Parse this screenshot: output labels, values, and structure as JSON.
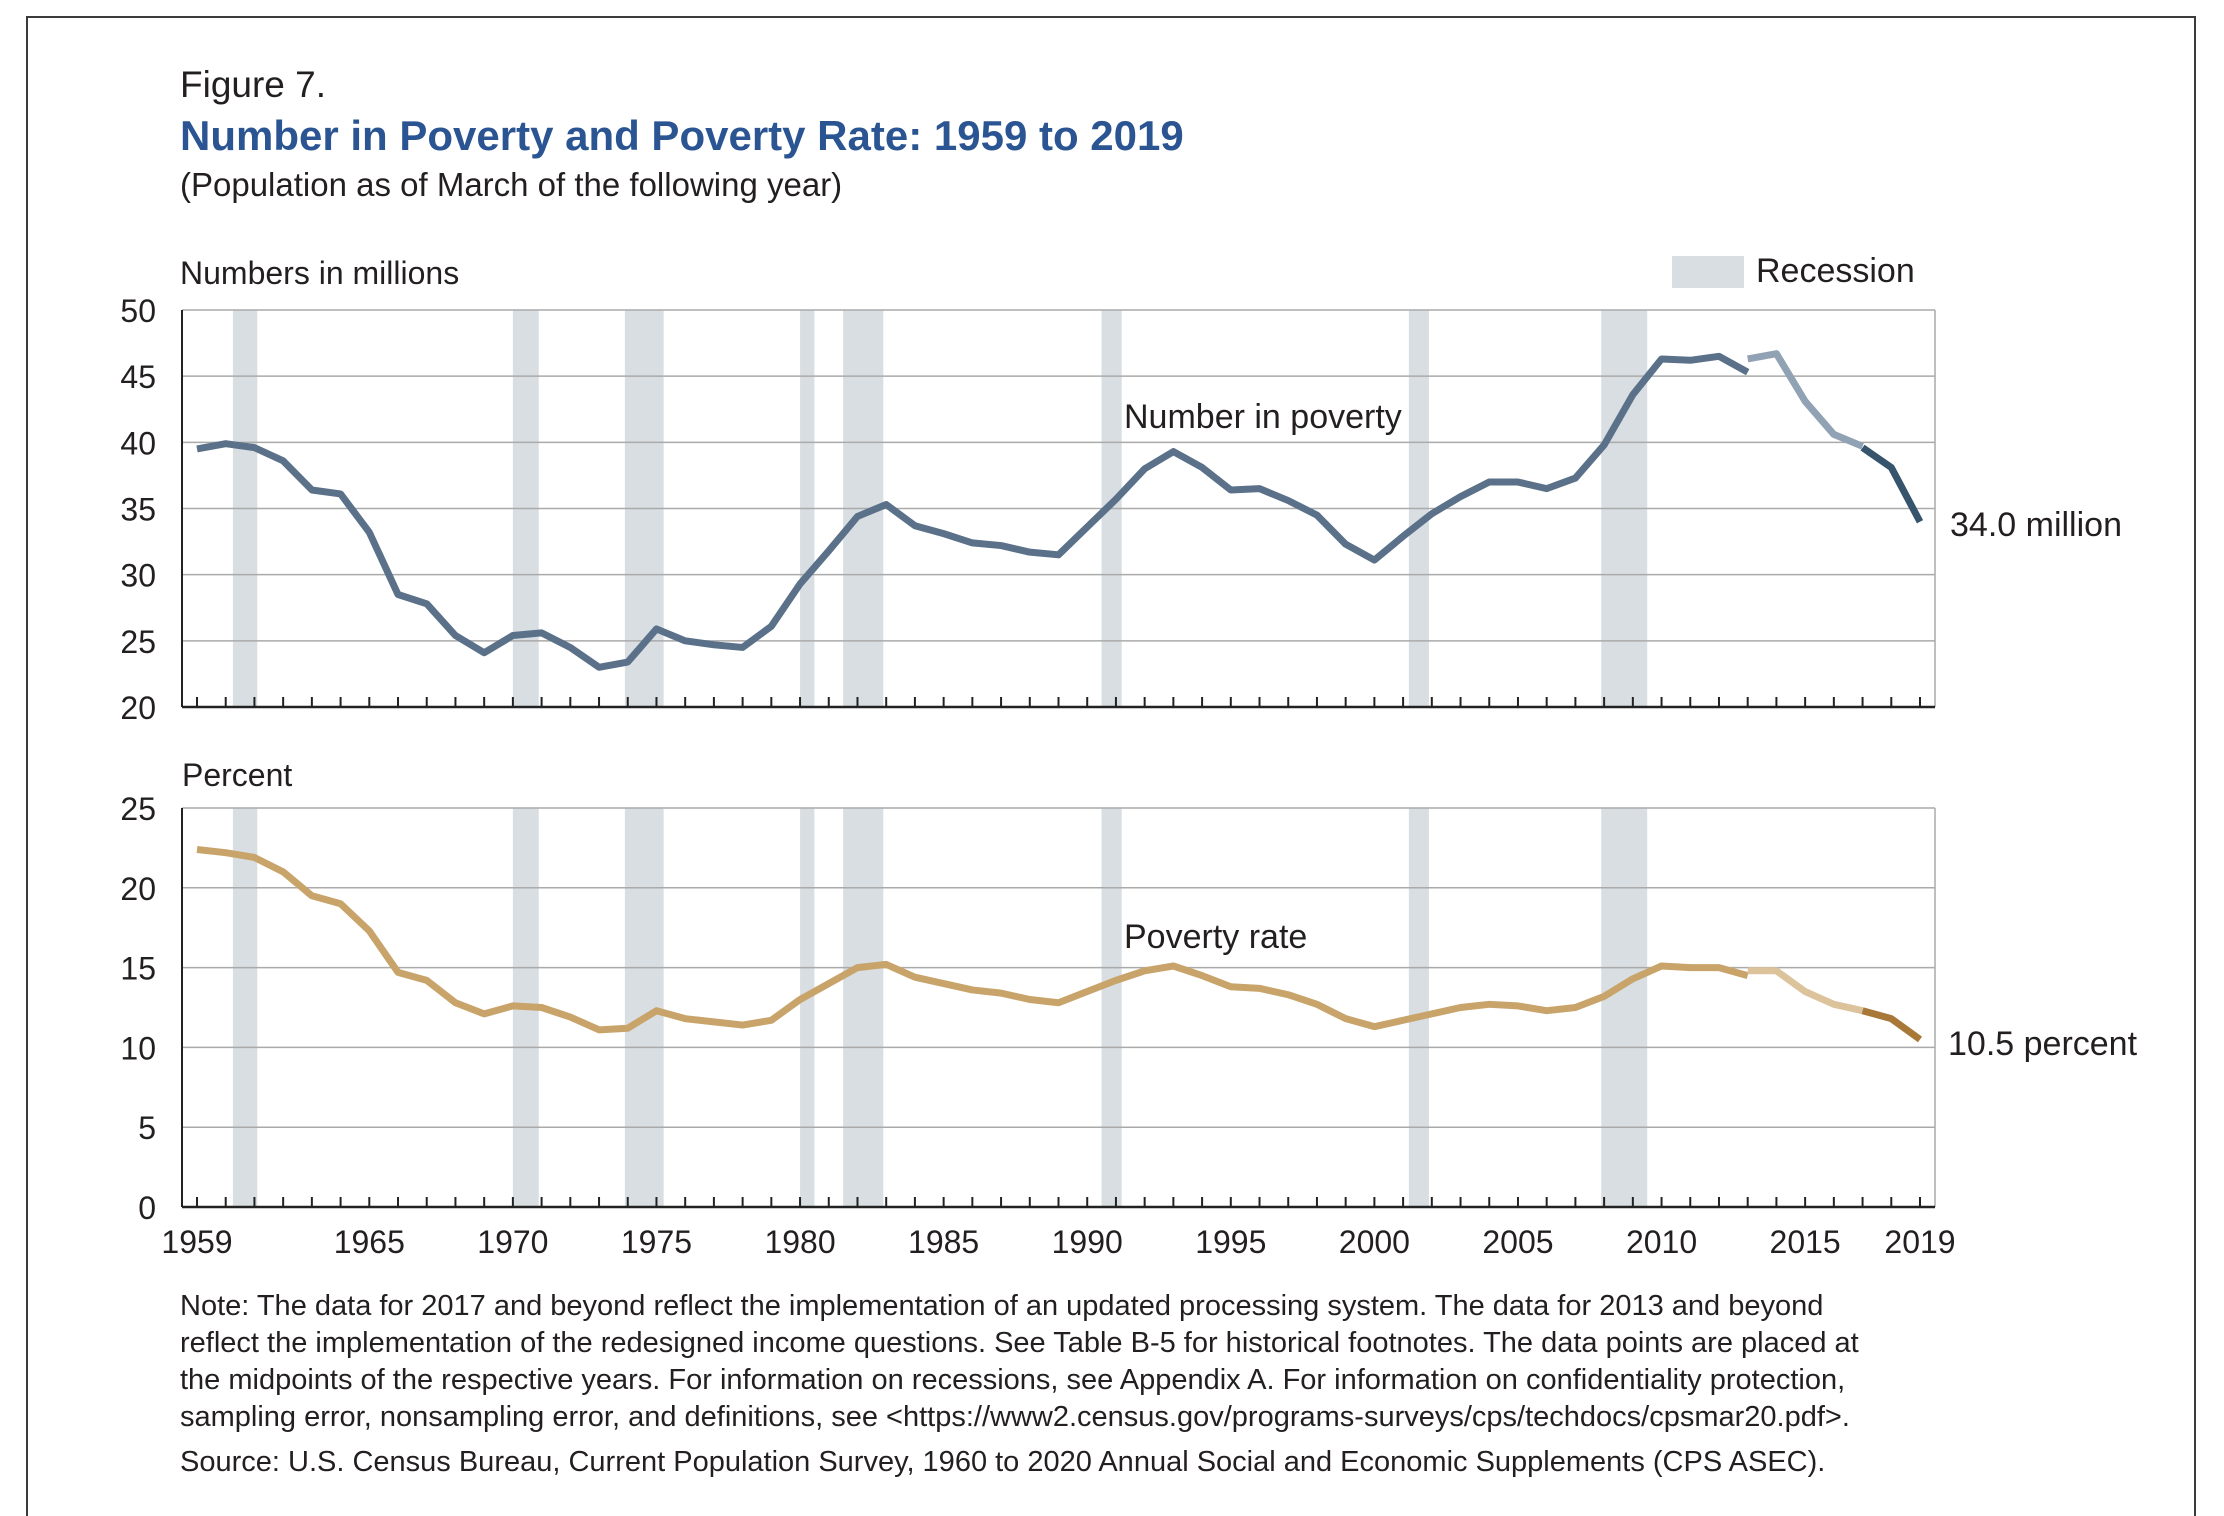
{
  "figure_label": "Figure 7.",
  "title": "Number in Poverty and Poverty Rate: 1959 to 2019",
  "subtitle": "(Population as of March of the following year)",
  "legend": {
    "recession_label": "Recession"
  },
  "notes": {
    "lines": [
      "Note: The data for 2017 and beyond reflect the implementation of an updated processing system. The data for 2013 and beyond",
      "reflect the implementation of the redesigned income questions. See Table B-5 for historical footnotes. The data points are placed at",
      "the midpoints of the respective years. For information on recessions, see Appendix A. For information on confidentiality protection,",
      "sampling error, nonsampling error, and definitions, see <https://www2.census.gov/programs-surveys/cps/techdocs/cpsmar20.pdf>."
    ],
    "source": "Source: U.S. Census Bureau, Current Population Survey, 1960 to 2020 Annual Social and Economic Supplements (CPS ASEC)."
  },
  "colors": {
    "number_line": "#5a7189",
    "number_redesign": "#91a2b5",
    "number_new": "#36546c",
    "rate_line": "#c9a46a",
    "rate_redesign": "#dcc39c",
    "rate_new": "#a87838",
    "recession": "#d8dee2",
    "grid": "#aaaaaa",
    "axis": "#222222"
  },
  "chart_data": [
    {
      "type": "line",
      "panel": "number",
      "ylabel": "Numbers in millions",
      "ylim": [
        20,
        50
      ],
      "yticks": [
        20,
        25,
        30,
        35,
        40,
        45,
        50
      ],
      "xlim": [
        1959,
        2019
      ],
      "xticks": [
        1959,
        1965,
        1970,
        1975,
        1980,
        1985,
        1990,
        1995,
        2000,
        2005,
        2010,
        2015,
        2019
      ],
      "series_label": "Number in poverty",
      "end_label": "34.0 million",
      "recessions": [
        [
          1960.25,
          1961.1
        ],
        [
          1970.0,
          1970.9
        ],
        [
          1973.9,
          1975.25
        ],
        [
          1980.0,
          1980.5
        ],
        [
          1981.5,
          1982.9
        ],
        [
          1990.5,
          1991.2
        ],
        [
          2001.2,
          2001.9
        ],
        [
          2007.9,
          2009.5
        ]
      ],
      "x": [
        1959,
        1960,
        1961,
        1962,
        1963,
        1964,
        1965,
        1966,
        1967,
        1968,
        1969,
        1970,
        1971,
        1972,
        1973,
        1974,
        1975,
        1976,
        1977,
        1978,
        1979,
        1980,
        1981,
        1982,
        1983,
        1984,
        1985,
        1986,
        1987,
        1988,
        1989,
        1990,
        1991,
        1992,
        1993,
        1994,
        1995,
        1996,
        1997,
        1998,
        1999,
        2000,
        2001,
        2002,
        2003,
        2004,
        2005,
        2006,
        2007,
        2008,
        2009,
        2010,
        2011,
        2012,
        2013,
        2013,
        2014,
        2015,
        2016,
        2017,
        2017,
        2018,
        2019
      ],
      "values": [
        39.5,
        39.9,
        39.6,
        38.6,
        36.4,
        36.1,
        33.2,
        28.5,
        27.8,
        25.4,
        24.1,
        25.4,
        25.6,
        24.5,
        23.0,
        23.4,
        25.9,
        25.0,
        24.7,
        24.5,
        26.1,
        29.3,
        31.8,
        34.4,
        35.3,
        33.7,
        33.1,
        32.4,
        32.2,
        31.7,
        31.5,
        33.6,
        35.7,
        38.0,
        39.3,
        38.1,
        36.4,
        36.5,
        35.6,
        34.5,
        32.3,
        31.1,
        32.9,
        34.6,
        35.9,
        37.0,
        37.0,
        36.5,
        37.3,
        39.8,
        43.6,
        46.3,
        46.2,
        46.5,
        45.3,
        46.3,
        46.7,
        43.1,
        40.6,
        39.7,
        39.6,
        38.1,
        34.0
      ],
      "segment_breaks": [
        54,
        59
      ]
    },
    {
      "type": "line",
      "panel": "rate",
      "ylabel": "Percent",
      "ylim": [
        0,
        25
      ],
      "yticks": [
        0,
        5,
        10,
        15,
        20,
        25
      ],
      "xlim": [
        1959,
        2019
      ],
      "xticks": [
        1959,
        1965,
        1970,
        1975,
        1980,
        1985,
        1990,
        1995,
        2000,
        2005,
        2010,
        2015,
        2019
      ],
      "series_label": "Poverty rate",
      "end_label": "10.5 percent",
      "recessions": [
        [
          1960.25,
          1961.1
        ],
        [
          1970.0,
          1970.9
        ],
        [
          1973.9,
          1975.25
        ],
        [
          1980.0,
          1980.5
        ],
        [
          1981.5,
          1982.9
        ],
        [
          1990.5,
          1991.2
        ],
        [
          2001.2,
          2001.9
        ],
        [
          2007.9,
          2009.5
        ]
      ],
      "x": [
        1959,
        1960,
        1961,
        1962,
        1963,
        1964,
        1965,
        1966,
        1967,
        1968,
        1969,
        1970,
        1971,
        1972,
        1973,
        1974,
        1975,
        1976,
        1977,
        1978,
        1979,
        1980,
        1981,
        1982,
        1983,
        1984,
        1985,
        1986,
        1987,
        1988,
        1989,
        1990,
        1991,
        1992,
        1993,
        1994,
        1995,
        1996,
        1997,
        1998,
        1999,
        2000,
        2001,
        2002,
        2003,
        2004,
        2005,
        2006,
        2007,
        2008,
        2009,
        2010,
        2011,
        2012,
        2013,
        2013,
        2014,
        2015,
        2016,
        2017,
        2017,
        2018,
        2019
      ],
      "values": [
        22.4,
        22.2,
        21.9,
        21.0,
        19.5,
        19.0,
        17.3,
        14.7,
        14.2,
        12.8,
        12.1,
        12.6,
        12.5,
        11.9,
        11.1,
        11.2,
        12.3,
        11.8,
        11.6,
        11.4,
        11.7,
        13.0,
        14.0,
        15.0,
        15.2,
        14.4,
        14.0,
        13.6,
        13.4,
        13.0,
        12.8,
        13.5,
        14.2,
        14.8,
        15.1,
        14.5,
        13.8,
        13.7,
        13.3,
        12.7,
        11.8,
        11.3,
        11.7,
        12.1,
        12.5,
        12.7,
        12.6,
        12.3,
        12.5,
        13.2,
        14.3,
        15.1,
        15.0,
        15.0,
        14.5,
        14.8,
        14.8,
        13.5,
        12.7,
        12.3,
        12.3,
        11.8,
        10.5
      ],
      "segment_breaks": [
        54,
        59
      ]
    }
  ]
}
